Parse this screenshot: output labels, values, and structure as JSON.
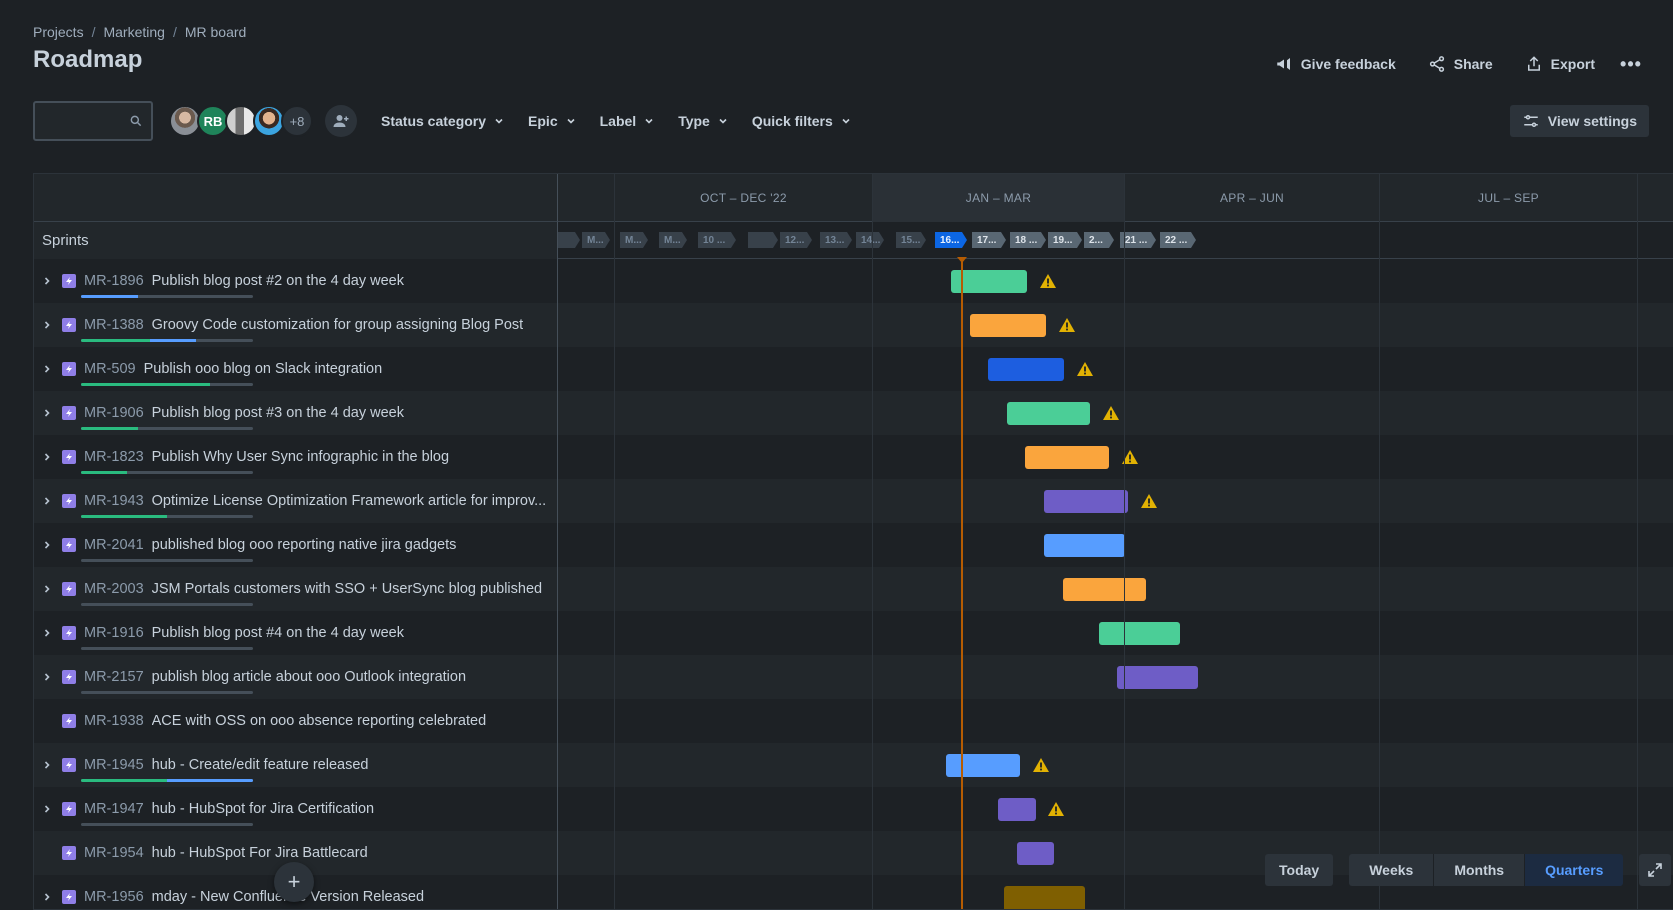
{
  "breadcrumb": [
    "Projects",
    "Marketing",
    "MR board"
  ],
  "page_title": "Roadmap",
  "actions": {
    "feedback": "Give feedback",
    "share": "Share",
    "export": "Export",
    "more": "•••"
  },
  "search": {
    "value": "",
    "placeholder": ""
  },
  "avatars": {
    "rb": "RB",
    "more": "+8"
  },
  "filters": {
    "status_category": "Status category",
    "epic": "Epic",
    "label": "Label",
    "type": "Type",
    "quick_filters": "Quick filters"
  },
  "view_settings": "View settings",
  "timeline": {
    "sprints_label": "Sprints",
    "quarters": [
      "OCT – DEC '22",
      "JAN – MAR",
      "APR – JUN",
      "JUL – SEP"
    ],
    "sprints": [
      "M...",
      "M...",
      "M...",
      "10 ...",
      "",
      "12...",
      "13...",
      "14...",
      "15...",
      "16...",
      "17...",
      "18 ...",
      "19...",
      "2...",
      "21 ...",
      "22 ..."
    ]
  },
  "issues": [
    {
      "key": "MR-1896",
      "title": "Publish blog post #2 on the 4 day week",
      "expandable": true,
      "progress": {
        "done": 0,
        "inprog": 0.33
      },
      "bar": {
        "start": 0.0,
        "len": 0
      },
      "color": "#4bce97",
      "warning": true
    },
    {
      "key": "MR-1388",
      "title": "Groovy Code customization for group assigning Blog Post",
      "expandable": true,
      "progress": {
        "done": 0.4,
        "inprog": 0.27
      },
      "color": "#faa53d",
      "warning": true
    },
    {
      "key": "MR-509",
      "title": "Publish ooo blog on Slack integration",
      "expandable": true,
      "progress": {
        "done": 0.75,
        "inprog": 0
      },
      "color": "#1d5ee0",
      "warning": true
    },
    {
      "key": "MR-1906",
      "title": "Publish blog post #3 on the 4 day week",
      "expandable": true,
      "progress": {
        "done": 0.33,
        "inprog": 0
      },
      "color": "#4bce97",
      "warning": true
    },
    {
      "key": "MR-1823",
      "title": "Publish Why User Sync infographic in the blog",
      "expandable": true,
      "progress": {
        "done": 0.27,
        "inprog": 0
      },
      "color": "#faa53d",
      "warning": true
    },
    {
      "key": "MR-1943",
      "title": "Optimize License Optimization Framework article for improv...",
      "expandable": true,
      "progress": {
        "done": 0.5,
        "inprog": 0
      },
      "color": "#6e5dc6",
      "warning": true
    },
    {
      "key": "MR-2041",
      "title": "published blog ooo reporting native jira gadgets",
      "expandable": true,
      "progress": {
        "done": 0,
        "inprog": 0
      },
      "color": "#579dff",
      "warning": false
    },
    {
      "key": "MR-2003",
      "title": "JSM Portals customers with SSO + UserSync blog published",
      "expandable": true,
      "progress": {
        "done": 0,
        "inprog": 0
      },
      "color": "#faa53d",
      "warning": false
    },
    {
      "key": "MR-1916",
      "title": "Publish blog post #4 on the 4 day week",
      "expandable": true,
      "progress": {
        "done": 0,
        "inprog": 0
      },
      "color": "#4bce97",
      "warning": false
    },
    {
      "key": "MR-2157",
      "title": "publish blog article about ooo Outlook integration",
      "expandable": true,
      "progress": {
        "done": 0,
        "inprog": 0
      },
      "color": "#6e5dc6",
      "warning": false
    },
    {
      "key": "MR-1938",
      "title": "ACE with OSS on ooo absence reporting celebrated",
      "expandable": false,
      "progress": null,
      "color": "",
      "warning": false
    },
    {
      "key": "MR-1945",
      "title": "hub - Create/edit feature released",
      "expandable": true,
      "progress": {
        "done": 0.5,
        "inprog": 0.5
      },
      "color": "#579dff",
      "warning": true
    },
    {
      "key": "MR-1947",
      "title": "hub - HubSpot for Jira Certification",
      "expandable": true,
      "progress": {
        "done": 0,
        "inprog": 0
      },
      "color": "#6e5dc6",
      "warning": true
    },
    {
      "key": "MR-1954",
      "title": "hub - HubSpot For Jira Battlecard",
      "expandable": false,
      "progress": null,
      "color": "#6e5dc6",
      "warning": false
    },
    {
      "key": "MR-1956",
      "title": "mday - New Confluence Version Released",
      "expandable": true,
      "progress": null,
      "color": "#7f5f01",
      "warning": false
    }
  ],
  "zoom": {
    "today": "Today",
    "weeks": "Weeks",
    "months": "Months",
    "quarters": "Quarters",
    "selected": "quarters"
  },
  "colors": {
    "accent": "#579dff",
    "today_line": "#b65c02",
    "warning": "#e2b203"
  }
}
